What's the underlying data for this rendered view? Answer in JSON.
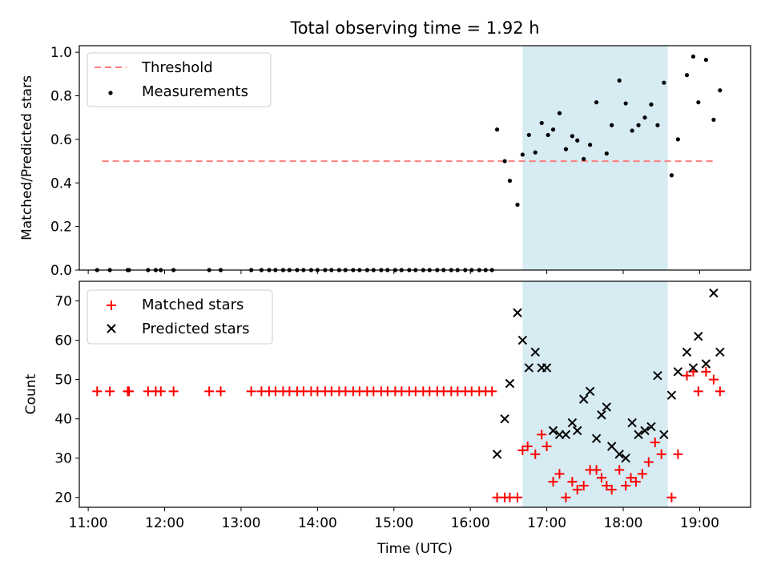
{
  "chart_data": [
    {
      "type": "scatter",
      "title": "Total observing time = 1.92 h",
      "xlabel": "",
      "ylabel": "Matched/Predicted stars",
      "xlim": [
        "10:53",
        "19:40"
      ],
      "ylim": [
        0,
        1.03
      ],
      "yticks": [
        0.0,
        0.2,
        0.4,
        0.6,
        0.8,
        1.0
      ],
      "ytick_labels": [
        "0.0",
        "0.2",
        "0.4",
        "0.6",
        "0.8",
        "1.0"
      ],
      "legend": "upper left",
      "shaded_region": {
        "start": "16:41",
        "end": "18:35",
        "color": "#add8e6"
      },
      "threshold": {
        "name": "Threshold",
        "y": 0.5,
        "x_start": "11:11",
        "x_end": "19:13",
        "color": "#ff7f7f"
      },
      "series": [
        {
          "name": "Measurements",
          "color": "#000000",
          "points": [
            [
              "11:07",
              0.0
            ],
            [
              "11:17",
              0.0
            ],
            [
              "11:31",
              0.0
            ],
            [
              "11:32",
              0.0
            ],
            [
              "11:47",
              0.0
            ],
            [
              "11:53",
              0.0
            ],
            [
              "11:57",
              0.0
            ],
            [
              "12:07",
              0.0
            ],
            [
              "12:35",
              0.0
            ],
            [
              "12:44",
              0.0
            ],
            [
              "13:08",
              0.0
            ],
            [
              "13:16",
              0.0
            ],
            [
              "13:22",
              0.0
            ],
            [
              "13:27",
              0.0
            ],
            [
              "13:33",
              0.0
            ],
            [
              "13:38",
              0.0
            ],
            [
              "13:44",
              0.0
            ],
            [
              "13:49",
              0.0
            ],
            [
              "13:55",
              0.0
            ],
            [
              "14:00",
              0.0
            ],
            [
              "14:06",
              0.0
            ],
            [
              "14:11",
              0.0
            ],
            [
              "14:17",
              0.0
            ],
            [
              "14:22",
              0.0
            ],
            [
              "14:28",
              0.0
            ],
            [
              "14:33",
              0.0
            ],
            [
              "14:39",
              0.0
            ],
            [
              "14:44",
              0.0
            ],
            [
              "14:50",
              0.0
            ],
            [
              "14:55",
              0.0
            ],
            [
              "15:01",
              0.0
            ],
            [
              "15:06",
              0.0
            ],
            [
              "15:12",
              0.0
            ],
            [
              "15:17",
              0.0
            ],
            [
              "15:23",
              0.0
            ],
            [
              "15:28",
              0.0
            ],
            [
              "15:34",
              0.0
            ],
            [
              "15:39",
              0.0
            ],
            [
              "15:45",
              0.0
            ],
            [
              "15:50",
              0.0
            ],
            [
              "15:56",
              0.0
            ],
            [
              "16:01",
              0.0
            ],
            [
              "16:07",
              0.0
            ],
            [
              "16:12",
              0.0
            ],
            [
              "16:17",
              0.0
            ],
            [
              "16:21",
              0.645
            ],
            [
              "16:27",
              0.5
            ],
            [
              "16:31",
              0.41
            ],
            [
              "16:37",
              0.3
            ],
            [
              "16:41",
              0.53
            ],
            [
              "16:46",
              0.62
            ],
            [
              "16:51",
              0.54
            ],
            [
              "16:56",
              0.675
            ],
            [
              "17:01",
              0.62
            ],
            [
              "17:05",
              0.645
            ],
            [
              "17:10",
              0.72
            ],
            [
              "17:15",
              0.555
            ],
            [
              "17:20",
              0.615
            ],
            [
              "17:24",
              0.595
            ],
            [
              "17:29",
              0.51
            ],
            [
              "17:34",
              0.575
            ],
            [
              "17:39",
              0.77
            ],
            [
              "17:47",
              0.535
            ],
            [
              "17:51",
              0.665
            ],
            [
              "17:57",
              0.87
            ],
            [
              "18:02",
              0.765
            ],
            [
              "18:07",
              0.64
            ],
            [
              "18:12",
              0.665
            ],
            [
              "18:17",
              0.7
            ],
            [
              "18:22",
              0.76
            ],
            [
              "18:27",
              0.665
            ],
            [
              "18:32",
              0.86
            ],
            [
              "18:38",
              0.435
            ],
            [
              "18:43",
              0.6
            ],
            [
              "18:50",
              0.895
            ],
            [
              "18:55",
              0.98
            ],
            [
              "18:59",
              0.77
            ],
            [
              "19:05",
              0.965
            ],
            [
              "19:11",
              0.69
            ],
            [
              "19:16",
              0.825
            ]
          ]
        }
      ]
    },
    {
      "type": "scatter",
      "title": "",
      "xlabel": "Time (UTC)",
      "ylabel": "Count",
      "xlim": [
        "10:53",
        "19:40"
      ],
      "ylim": [
        17.5,
        75
      ],
      "yticks": [
        20,
        30,
        40,
        50,
        60,
        70
      ],
      "ytick_labels": [
        "20",
        "30",
        "40",
        "50",
        "60",
        "70"
      ],
      "xticks": [
        "11:00",
        "12:00",
        "13:00",
        "14:00",
        "15:00",
        "16:00",
        "17:00",
        "18:00",
        "19:00"
      ],
      "legend": "upper left",
      "shaded_region": {
        "start": "16:41",
        "end": "18:35",
        "color": "#add8e6"
      },
      "series": [
        {
          "name": "Matched stars",
          "marker": "+",
          "color": "#ff0000",
          "points": [
            [
              "11:07",
              47
            ],
            [
              "11:17",
              47
            ],
            [
              "11:31",
              47
            ],
            [
              "11:32",
              47
            ],
            [
              "11:47",
              47
            ],
            [
              "11:53",
              47
            ],
            [
              "11:57",
              47
            ],
            [
              "12:07",
              47
            ],
            [
              "12:35",
              47
            ],
            [
              "12:44",
              47
            ],
            [
              "13:08",
              47
            ],
            [
              "13:16",
              47
            ],
            [
              "13:22",
              47
            ],
            [
              "13:27",
              47
            ],
            [
              "13:33",
              47
            ],
            [
              "13:38",
              47
            ],
            [
              "13:44",
              47
            ],
            [
              "13:49",
              47
            ],
            [
              "13:55",
              47
            ],
            [
              "14:00",
              47
            ],
            [
              "14:06",
              47
            ],
            [
              "14:11",
              47
            ],
            [
              "14:17",
              47
            ],
            [
              "14:22",
              47
            ],
            [
              "14:28",
              47
            ],
            [
              "14:33",
              47
            ],
            [
              "14:39",
              47
            ],
            [
              "14:44",
              47
            ],
            [
              "14:50",
              47
            ],
            [
              "14:55",
              47
            ],
            [
              "15:01",
              47
            ],
            [
              "15:06",
              47
            ],
            [
              "15:12",
              47
            ],
            [
              "15:17",
              47
            ],
            [
              "15:23",
              47
            ],
            [
              "15:28",
              47
            ],
            [
              "15:34",
              47
            ],
            [
              "15:39",
              47
            ],
            [
              "15:45",
              47
            ],
            [
              "15:50",
              47
            ],
            [
              "15:56",
              47
            ],
            [
              "16:01",
              47
            ],
            [
              "16:07",
              47
            ],
            [
              "16:12",
              47
            ],
            [
              "16:17",
              47
            ],
            [
              "16:21",
              20
            ],
            [
              "16:27",
              20
            ],
            [
              "16:31",
              20
            ],
            [
              "16:37",
              20
            ],
            [
              "16:41",
              32
            ],
            [
              "16:45",
              33
            ],
            [
              "16:51",
              31
            ],
            [
              "16:56",
              36
            ],
            [
              "17:00",
              33
            ],
            [
              "17:05",
              24
            ],
            [
              "17:10",
              26
            ],
            [
              "17:15",
              20
            ],
            [
              "17:20",
              24
            ],
            [
              "17:24",
              22
            ],
            [
              "17:29",
              23
            ],
            [
              "17:34",
              27
            ],
            [
              "17:39",
              27
            ],
            [
              "17:43",
              25
            ],
            [
              "17:47",
              23
            ],
            [
              "17:51",
              22
            ],
            [
              "17:57",
              27
            ],
            [
              "18:02",
              23
            ],
            [
              "18:06",
              25
            ],
            [
              "18:10",
              24
            ],
            [
              "18:15",
              26
            ],
            [
              "18:20",
              29
            ],
            [
              "18:25",
              34
            ],
            [
              "18:30",
              31
            ],
            [
              "18:38",
              20
            ],
            [
              "18:43",
              31
            ],
            [
              "18:50",
              51
            ],
            [
              "18:55",
              52
            ],
            [
              "18:59",
              47
            ],
            [
              "19:05",
              52
            ],
            [
              "19:11",
              50
            ],
            [
              "19:16",
              47
            ]
          ]
        },
        {
          "name": "Predicted stars",
          "marker": "x",
          "color": "#000000",
          "points": [
            [
              "16:21",
              31
            ],
            [
              "16:27",
              40
            ],
            [
              "16:31",
              49
            ],
            [
              "16:37",
              67
            ],
            [
              "16:41",
              60
            ],
            [
              "16:46",
              53
            ],
            [
              "16:51",
              57
            ],
            [
              "16:56",
              53
            ],
            [
              "17:00",
              53
            ],
            [
              "17:05",
              37
            ],
            [
              "17:10",
              36
            ],
            [
              "17:15",
              36
            ],
            [
              "17:20",
              39
            ],
            [
              "17:24",
              37
            ],
            [
              "17:29",
              45
            ],
            [
              "17:34",
              47
            ],
            [
              "17:39",
              35
            ],
            [
              "17:43",
              41
            ],
            [
              "17:47",
              43
            ],
            [
              "17:51",
              33
            ],
            [
              "17:57",
              31
            ],
            [
              "18:02",
              30
            ],
            [
              "18:07",
              39
            ],
            [
              "18:12",
              36
            ],
            [
              "18:17",
              37
            ],
            [
              "18:22",
              38
            ],
            [
              "18:27",
              51
            ],
            [
              "18:32",
              36
            ],
            [
              "18:38",
              46
            ],
            [
              "18:43",
              52
            ],
            [
              "18:50",
              57
            ],
            [
              "18:55",
              53
            ],
            [
              "18:59",
              61
            ],
            [
              "19:05",
              54
            ],
            [
              "19:11",
              72
            ],
            [
              "19:16",
              57
            ]
          ]
        }
      ]
    }
  ]
}
